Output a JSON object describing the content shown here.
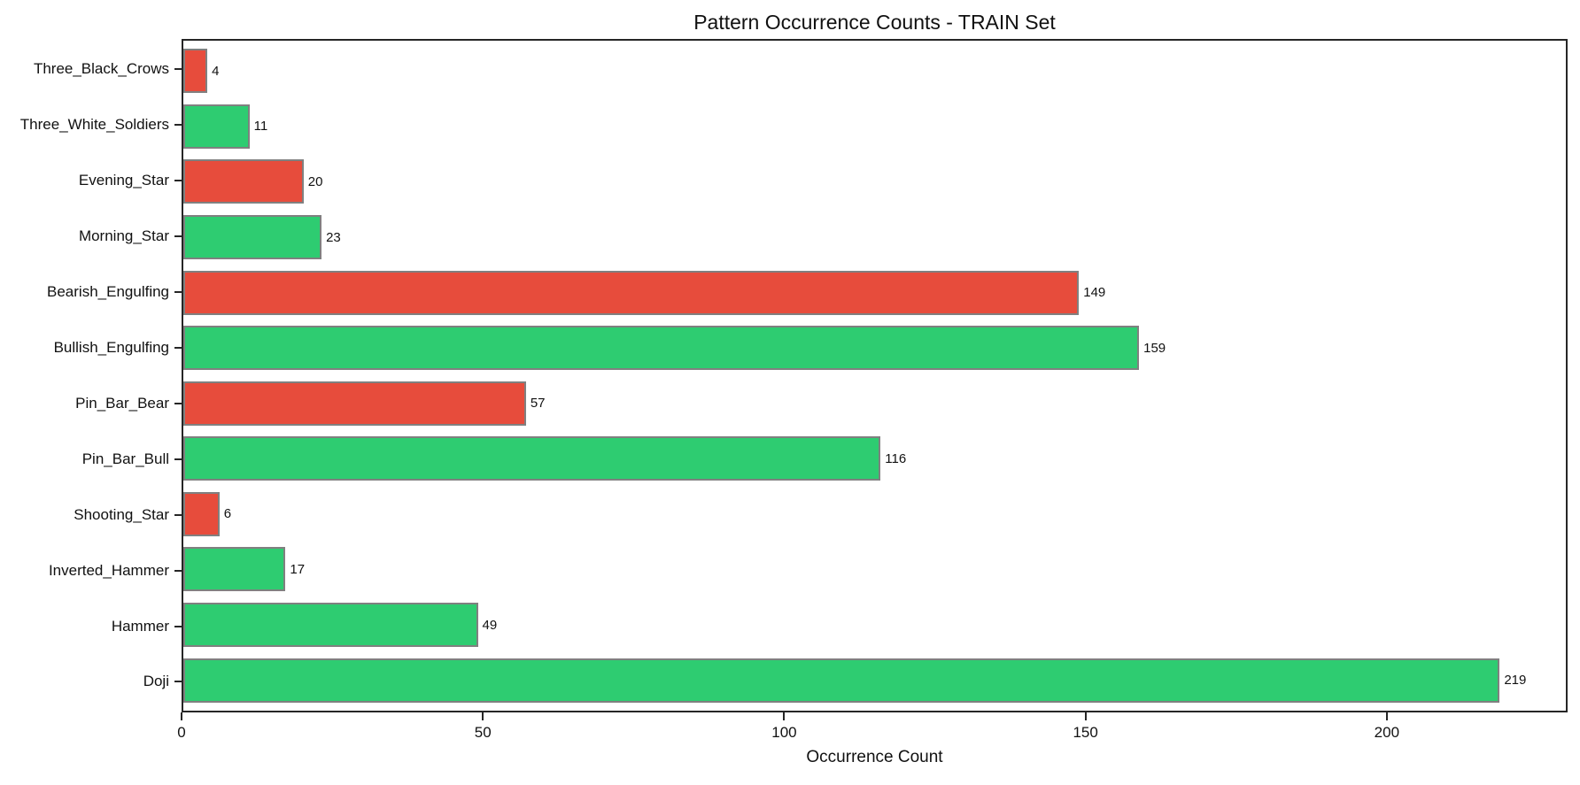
{
  "figure": {
    "background": "#ffffff"
  },
  "colors": {
    "bullish_green": "#2ecc71",
    "bearish_red": "#e74c3c",
    "bar_edge": "#808080",
    "axis": "#262626",
    "text": "#111111"
  },
  "chart_data": {
    "type": "bar",
    "orientation": "horizontal",
    "title": "Pattern Occurrence Counts - TRAIN Set",
    "xlabel": "Occurrence Count",
    "ylabel": "",
    "xlim": [
      0,
      230
    ],
    "xticks": [
      0,
      50,
      100,
      150,
      200
    ],
    "grid": false,
    "legend": false,
    "value_labels_shown": true,
    "categories_top_to_bottom": [
      "Three_Black_Crows",
      "Three_White_Soldiers",
      "Evening_Star",
      "Morning_Star",
      "Bearish_Engulfing",
      "Bullish_Engulfing",
      "Pin_Bar_Bear",
      "Pin_Bar_Bull",
      "Shooting_Star",
      "Inverted_Hammer",
      "Hammer",
      "Doji"
    ],
    "bars": [
      {
        "label": "Three_Black_Crows",
        "value": 4,
        "color": "#e74c3c"
      },
      {
        "label": "Three_White_Soldiers",
        "value": 11,
        "color": "#2ecc71"
      },
      {
        "label": "Evening_Star",
        "value": 20,
        "color": "#e74c3c"
      },
      {
        "label": "Morning_Star",
        "value": 23,
        "color": "#2ecc71"
      },
      {
        "label": "Bearish_Engulfing",
        "value": 149,
        "color": "#e74c3c"
      },
      {
        "label": "Bullish_Engulfing",
        "value": 159,
        "color": "#2ecc71"
      },
      {
        "label": "Pin_Bar_Bear",
        "value": 57,
        "color": "#e74c3c"
      },
      {
        "label": "Pin_Bar_Bull",
        "value": 116,
        "color": "#2ecc71"
      },
      {
        "label": "Shooting_Star",
        "value": 6,
        "color": "#e74c3c"
      },
      {
        "label": "Inverted_Hammer",
        "value": 17,
        "color": "#2ecc71"
      },
      {
        "label": "Hammer",
        "value": 49,
        "color": "#2ecc71"
      },
      {
        "label": "Doji",
        "value": 219,
        "color": "#2ecc71"
      }
    ]
  }
}
